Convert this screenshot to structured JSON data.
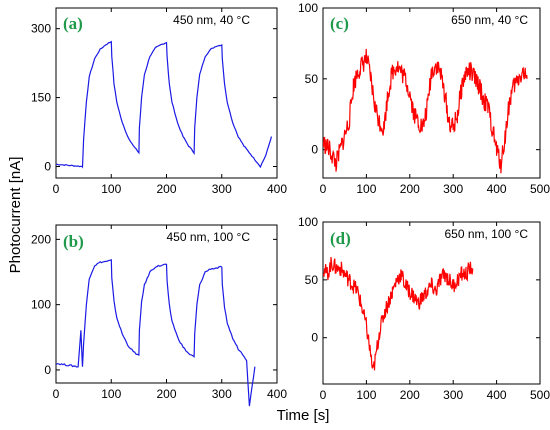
{
  "figure": {
    "xlabel": "Time [s]",
    "ylabel": "Photocurrent [nA]"
  },
  "chart_data": [
    {
      "id": "a",
      "type": "line",
      "panel_label": "(a)",
      "annotation": "450 nm, 40 °C",
      "xlim": [
        0,
        400
      ],
      "ylim": [
        -25,
        345
      ],
      "xticks": [
        0,
        100,
        200,
        300,
        400
      ],
      "yticks": [
        0,
        150,
        300
      ],
      "color": "#1a1ae6",
      "x": [
        0,
        48,
        50,
        55,
        60,
        70,
        80,
        90,
        100,
        101,
        105,
        110,
        120,
        130,
        140,
        150,
        151,
        155,
        160,
        170,
        180,
        190,
        200,
        201,
        205,
        210,
        220,
        230,
        240,
        250,
        251,
        255,
        260,
        270,
        280,
        290,
        300,
        301,
        305,
        310,
        320,
        330,
        340,
        350,
        360,
        370,
        380,
        390
      ],
      "y": [
        5,
        0,
        60,
        140,
        195,
        235,
        255,
        265,
        272,
        240,
        180,
        140,
        95,
        65,
        45,
        30,
        85,
        150,
        200,
        240,
        258,
        265,
        270,
        240,
        180,
        140,
        95,
        65,
        45,
        30,
        85,
        150,
        200,
        240,
        255,
        262,
        265,
        235,
        180,
        140,
        95,
        65,
        45,
        30,
        15,
        0,
        25,
        65
      ]
    },
    {
      "id": "b",
      "type": "line",
      "panel_label": "(b)",
      "annotation": "450 nm, 100 °C",
      "xlim": [
        0,
        400
      ],
      "ylim": [
        -20,
        222
      ],
      "xticks": [
        0,
        100,
        200,
        300,
        400
      ],
      "yticks": [
        0,
        100,
        200
      ],
      "color": "#1a1ae6",
      "x": [
        0,
        40,
        45,
        48,
        50,
        55,
        60,
        70,
        80,
        90,
        100,
        101,
        105,
        110,
        120,
        130,
        140,
        150,
        151,
        155,
        160,
        170,
        180,
        190,
        200,
        201,
        205,
        210,
        220,
        230,
        240,
        250,
        251,
        255,
        260,
        270,
        280,
        290,
        300,
        301,
        305,
        310,
        320,
        330,
        340,
        345,
        350,
        360
      ],
      "y": [
        10,
        5,
        60,
        5,
        40,
        100,
        140,
        160,
        165,
        166,
        168,
        140,
        105,
        80,
        55,
        38,
        28,
        22,
        60,
        105,
        130,
        150,
        158,
        160,
        162,
        135,
        100,
        75,
        50,
        35,
        25,
        20,
        55,
        100,
        130,
        150,
        155,
        156,
        158,
        130,
        95,
        72,
        48,
        32,
        22,
        15,
        -55,
        5
      ]
    },
    {
      "id": "c",
      "type": "line",
      "panel_label": "(c)",
      "annotation": "650 nm, 40 °C",
      "xlim": [
        0,
        500
      ],
      "ylim": [
        -20,
        100
      ],
      "xticks": [
        0,
        100,
        200,
        300,
        400,
        500
      ],
      "yticks": [
        0,
        50,
        100
      ],
      "color": "#ff0000",
      "x": [
        0,
        15,
        30,
        45,
        60,
        70,
        80,
        90,
        100,
        110,
        120,
        130,
        140,
        150,
        160,
        170,
        180,
        190,
        200,
        210,
        220,
        230,
        240,
        250,
        260,
        270,
        280,
        290,
        300,
        310,
        320,
        330,
        340,
        350,
        360,
        370,
        380,
        390,
        400,
        410,
        420,
        430,
        440,
        450,
        460,
        470
      ],
      "y": [
        5,
        0,
        -10,
        5,
        20,
        45,
        55,
        60,
        65,
        50,
        30,
        20,
        15,
        40,
        55,
        60,
        55,
        50,
        40,
        25,
        20,
        15,
        30,
        55,
        60,
        55,
        40,
        20,
        15,
        25,
        45,
        55,
        55,
        50,
        45,
        35,
        30,
        15,
        0,
        -10,
        10,
        35,
        45,
        50,
        55,
        50
      ]
    },
    {
      "id": "d",
      "type": "line",
      "panel_label": "(d)",
      "annotation": "650 nm, 100 °C",
      "xlim": [
        0,
        500
      ],
      "ylim": [
        -40,
        100
      ],
      "xticks": [
        0,
        100,
        200,
        300,
        400,
        500
      ],
      "yticks": [
        0,
        50,
        100
      ],
      "color": "#ff0000",
      "x": [
        0,
        10,
        20,
        30,
        40,
        50,
        60,
        70,
        80,
        90,
        100,
        110,
        115,
        120,
        130,
        140,
        150,
        160,
        170,
        180,
        190,
        200,
        210,
        220,
        230,
        240,
        250,
        260,
        270,
        280,
        290,
        300,
        310,
        320,
        330,
        340,
        345
      ],
      "y": [
        60,
        55,
        65,
        60,
        60,
        55,
        50,
        45,
        40,
        25,
        10,
        -15,
        -30,
        -20,
        5,
        20,
        30,
        40,
        50,
        55,
        45,
        40,
        35,
        30,
        35,
        40,
        45,
        40,
        50,
        55,
        50,
        45,
        50,
        55,
        55,
        60,
        60
      ]
    }
  ]
}
